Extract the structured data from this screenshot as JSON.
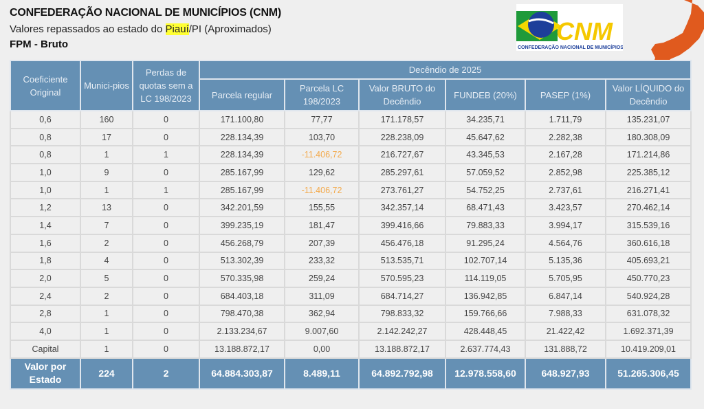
{
  "header": {
    "title": "CONFEDERAÇÃO NACIONAL DE MUNICÍPIOS (CNM)",
    "subtitle_pre": "Valores repassados ao estado do ",
    "subtitle_state": "Piauí",
    "subtitle_post": "/PI (Aproximados)",
    "section": "FPM - Bruto"
  },
  "logo": {
    "text": "CNM",
    "caption": "CONFEDERAÇÃO NACIONAL DE MUNICÍPIOS"
  },
  "colors": {
    "header_bg": "#6590b4",
    "negative": "#f3a94a",
    "map": "#e05a1e",
    "highlight": "#ffff33"
  },
  "table": {
    "group_header": "Decêndio de 2025",
    "columns": [
      "Coeficiente Original",
      "Munici-pios",
      "Perdas de quotas sem a LC 198/2023",
      "Parcela regular",
      "Parcela LC 198/2023",
      "Valor BRUTO do Decêndio",
      "FUNDEB (20%)",
      "PASEP (1%)",
      "Valor LÍQUIDO do Decêndio"
    ],
    "rows": [
      [
        "0,6",
        "160",
        "0",
        "171.100,80",
        "77,77",
        "171.178,57",
        "34.235,71",
        "1.711,79",
        "135.231,07"
      ],
      [
        "0,8",
        "17",
        "0",
        "228.134,39",
        "103,70",
        "228.238,09",
        "45.647,62",
        "2.282,38",
        "180.308,09"
      ],
      [
        "0,8",
        "1",
        "1",
        "228.134,39",
        "-11.406,72",
        "216.727,67",
        "43.345,53",
        "2.167,28",
        "171.214,86"
      ],
      [
        "1,0",
        "9",
        "0",
        "285.167,99",
        "129,62",
        "285.297,61",
        "57.059,52",
        "2.852,98",
        "225.385,12"
      ],
      [
        "1,0",
        "1",
        "1",
        "285.167,99",
        "-11.406,72",
        "273.761,27",
        "54.752,25",
        "2.737,61",
        "216.271,41"
      ],
      [
        "1,2",
        "13",
        "0",
        "342.201,59",
        "155,55",
        "342.357,14",
        "68.471,43",
        "3.423,57",
        "270.462,14"
      ],
      [
        "1,4",
        "7",
        "0",
        "399.235,19",
        "181,47",
        "399.416,66",
        "79.883,33",
        "3.994,17",
        "315.539,16"
      ],
      [
        "1,6",
        "2",
        "0",
        "456.268,79",
        "207,39",
        "456.476,18",
        "91.295,24",
        "4.564,76",
        "360.616,18"
      ],
      [
        "1,8",
        "4",
        "0",
        "513.302,39",
        "233,32",
        "513.535,71",
        "102.707,14",
        "5.135,36",
        "405.693,21"
      ],
      [
        "2,0",
        "5",
        "0",
        "570.335,98",
        "259,24",
        "570.595,23",
        "114.119,05",
        "5.705,95",
        "450.770,23"
      ],
      [
        "2,4",
        "2",
        "0",
        "684.403,18",
        "311,09",
        "684.714,27",
        "136.942,85",
        "6.847,14",
        "540.924,28"
      ],
      [
        "2,8",
        "1",
        "0",
        "798.470,38",
        "362,94",
        "798.833,32",
        "159.766,66",
        "7.988,33",
        "631.078,32"
      ],
      [
        "4,0",
        "1",
        "0",
        "2.133.234,67",
        "9.007,60",
        "2.142.242,27",
        "428.448,45",
        "21.422,42",
        "1.692.371,39"
      ],
      [
        "Capital",
        "1",
        "0",
        "13.188.872,17",
        "0,00",
        "13.188.872,17",
        "2.637.774,43",
        "131.888,72",
        "10.419.209,01"
      ]
    ],
    "total": [
      "Valor por Estado",
      "224",
      "2",
      "64.884.303,87",
      "8.489,11",
      "64.892.792,98",
      "12.978.558,60",
      "648.927,93",
      "51.265.306,45"
    ]
  }
}
